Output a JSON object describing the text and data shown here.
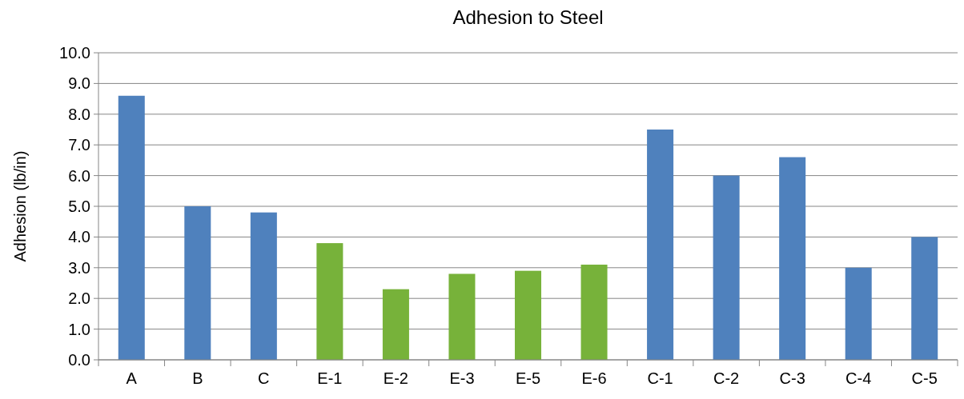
{
  "chart_data": {
    "type": "bar",
    "title": "Adhesion to Steel",
    "ylabel": "Adhesion (lb/in)",
    "categories": [
      "A",
      "B",
      "C",
      "E-1",
      "E-2",
      "E-3",
      "E-5",
      "E-6",
      "C-1",
      "C-2",
      "C-3",
      "C-4",
      "C-5"
    ],
    "values": [
      8.6,
      5.0,
      4.8,
      3.8,
      2.3,
      2.8,
      2.9,
      3.1,
      7.5,
      6.0,
      6.6,
      3.0,
      4.0
    ],
    "colors": [
      "#4f81bd",
      "#4f81bd",
      "#4f81bd",
      "#77b23a",
      "#77b23a",
      "#77b23a",
      "#77b23a",
      "#77b23a",
      "#4f81bd",
      "#4f81bd",
      "#4f81bd",
      "#4f81bd",
      "#4f81bd"
    ],
    "ylim": [
      0,
      10
    ],
    "yticks": [
      {
        "value": 0,
        "label": "0.0"
      },
      {
        "value": 1,
        "label": "1.0"
      },
      {
        "value": 2,
        "label": "2.0"
      },
      {
        "value": 3,
        "label": "3.0"
      },
      {
        "value": 4,
        "label": "4.0"
      },
      {
        "value": 5,
        "label": "5.0"
      },
      {
        "value": 6,
        "label": "6.0"
      },
      {
        "value": 7,
        "label": "7.0"
      },
      {
        "value": 8,
        "label": "8.0"
      },
      {
        "value": 9,
        "label": "9.0"
      },
      {
        "value": 10,
        "label": "10.0"
      }
    ],
    "grid": true
  }
}
